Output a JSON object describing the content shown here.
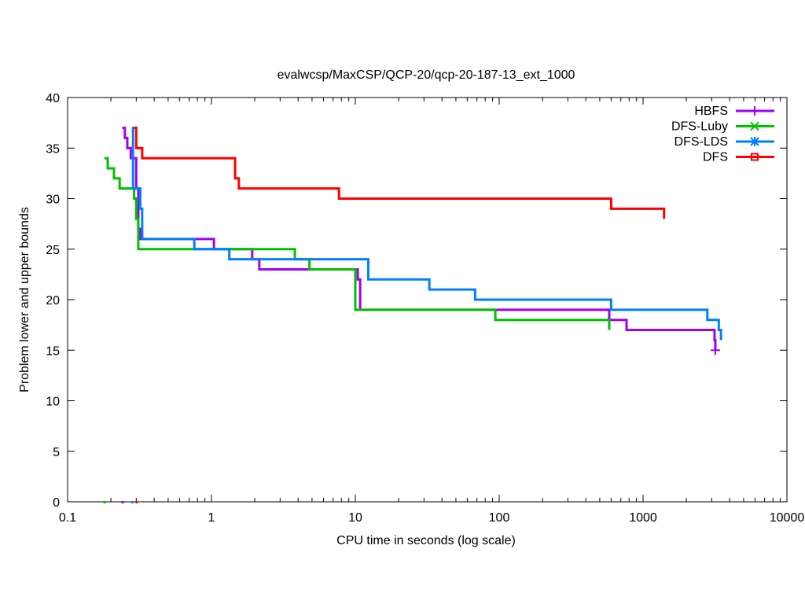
{
  "chart_data": {
    "type": "line",
    "title": "evalwcsp/MaxCSP/QCP-20/qcp-20-187-13_ext_1000",
    "xlabel": "CPU time in seconds (log scale)",
    "ylabel": "Problem lower and upper bounds",
    "xscale": "log",
    "xlim": [
      0.1,
      10000
    ],
    "ylim": [
      0,
      40
    ],
    "xticks": [
      0.1,
      1,
      10,
      100,
      1000,
      10000
    ],
    "xtick_labels": [
      "0.1",
      "1",
      "10",
      "100",
      "1000",
      "10000"
    ],
    "yticks": [
      0,
      5,
      10,
      15,
      20,
      25,
      30,
      35,
      40
    ],
    "ytick_labels": [
      "0",
      "5",
      "10",
      "15",
      "20",
      "25",
      "30",
      "35",
      "40"
    ],
    "legend_position": "top-right",
    "series": [
      {
        "name": "HBFS",
        "color": "#a000f0",
        "marker": "plus",
        "upper": [
          [
            0.24,
            37
          ],
          [
            0.25,
            36
          ],
          [
            0.26,
            35
          ],
          [
            0.275,
            34
          ],
          [
            0.3,
            31
          ],
          [
            0.31,
            27
          ],
          [
            0.32,
            26
          ],
          [
            1.04,
            25
          ],
          [
            1.92,
            24
          ],
          [
            2.15,
            23
          ],
          [
            10.4,
            22
          ],
          [
            10.8,
            19
          ],
          [
            582,
            18
          ],
          [
            768,
            17
          ],
          [
            3140,
            16
          ],
          [
            3180,
            15
          ]
        ],
        "lower": [
          [
            0.24,
            0
          ]
        ],
        "end_marker": [
          3180,
          15
        ]
      },
      {
        "name": "DFS-Luby",
        "color": "#00c000",
        "marker": "x",
        "upper": [
          [
            0.18,
            34
          ],
          [
            0.19,
            33
          ],
          [
            0.21,
            32
          ],
          [
            0.23,
            31
          ],
          [
            0.29,
            30
          ],
          [
            0.3,
            28
          ],
          [
            0.31,
            25
          ],
          [
            3.8,
            24
          ],
          [
            4.8,
            23
          ],
          [
            10.0,
            19
          ],
          [
            94,
            18
          ],
          [
            582,
            17
          ]
        ],
        "lower": [
          [
            0.18,
            0
          ]
        ]
      },
      {
        "name": "DFS-LDS",
        "color": "#0080ff",
        "marker": "star",
        "upper": [
          [
            0.28,
            37
          ],
          [
            0.285,
            31
          ],
          [
            0.32,
            29
          ],
          [
            0.33,
            26
          ],
          [
            0.76,
            25
          ],
          [
            1.33,
            24
          ],
          [
            12.3,
            22
          ],
          [
            32.7,
            21
          ],
          [
            68,
            20
          ],
          [
            600,
            19
          ],
          [
            2800,
            18
          ],
          [
            3360,
            17
          ],
          [
            3480,
            16
          ]
        ],
        "lower": [
          [
            0.28,
            0
          ]
        ]
      },
      {
        "name": "DFS",
        "color": "#ff0000",
        "marker": "square",
        "upper": [
          [
            0.29,
            37
          ],
          [
            0.3,
            35
          ],
          [
            0.33,
            34
          ],
          [
            1.46,
            32
          ],
          [
            1.55,
            31
          ],
          [
            7.7,
            30
          ],
          [
            600,
            29
          ],
          [
            1400,
            28
          ]
        ],
        "lower": [
          [
            0.3,
            0
          ]
        ]
      }
    ]
  }
}
